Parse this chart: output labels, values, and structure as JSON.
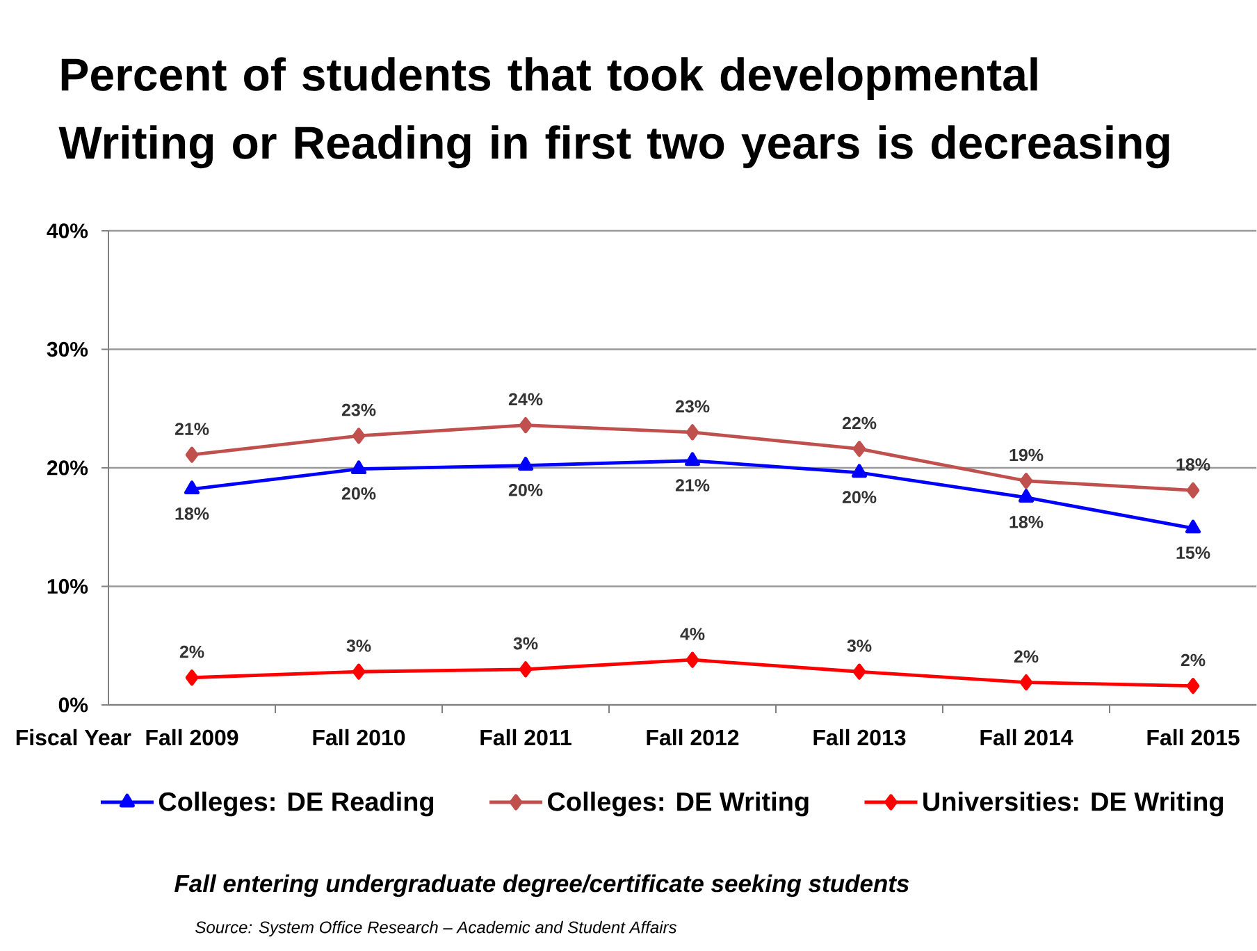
{
  "chart_data": {
    "type": "line",
    "title": "Percent of students that took developmental Writing or Reading in first two years is decreasing",
    "xlabel": "Fiscal Year",
    "categories": [
      "Fall 2009",
      "Fall 2010",
      "Fall 2011",
      "Fall 2012",
      "Fall 2013",
      "Fall 2014",
      "Fall 2015"
    ],
    "ylim": [
      0,
      40
    ],
    "yticks": [
      {
        "value": 0,
        "label": "0%"
      },
      {
        "value": 10,
        "label": "10%"
      },
      {
        "value": 20,
        "label": "20%"
      },
      {
        "value": 30,
        "label": "30%"
      },
      {
        "value": 40,
        "label": "40%"
      }
    ],
    "grid": "y",
    "legend": "bottom",
    "series": [
      {
        "name": "Colleges: DE Reading",
        "color": "#0000ff",
        "marker": "triangle",
        "values": [
          18.2,
          19.9,
          20.2,
          20.6,
          19.6,
          17.5,
          14.9
        ],
        "value_labels": [
          "18%",
          "20%",
          "20%",
          "21%",
          "20%",
          "18%",
          "15%"
        ]
      },
      {
        "name": "Colleges: DE Writing",
        "color": "#c0504d",
        "marker": "diamond",
        "values": [
          21.1,
          22.7,
          23.6,
          23.0,
          21.6,
          18.9,
          18.1
        ],
        "value_labels": [
          "21%",
          "23%",
          "24%",
          "23%",
          "22%",
          "19%",
          "18%"
        ]
      },
      {
        "name": "Universities: DE Writing",
        "color": "#ff0000",
        "marker": "diamond",
        "values": [
          2.3,
          2.8,
          3.0,
          3.8,
          2.8,
          1.9,
          1.6
        ],
        "value_labels": [
          "2%",
          "3%",
          "3%",
          "4%",
          "3%",
          "2%",
          "2%"
        ]
      }
    ],
    "annotations": [
      "Fall entering undergraduate degree/certificate seeking students",
      "Source: System Office Research – Academic and Student Affairs"
    ]
  }
}
